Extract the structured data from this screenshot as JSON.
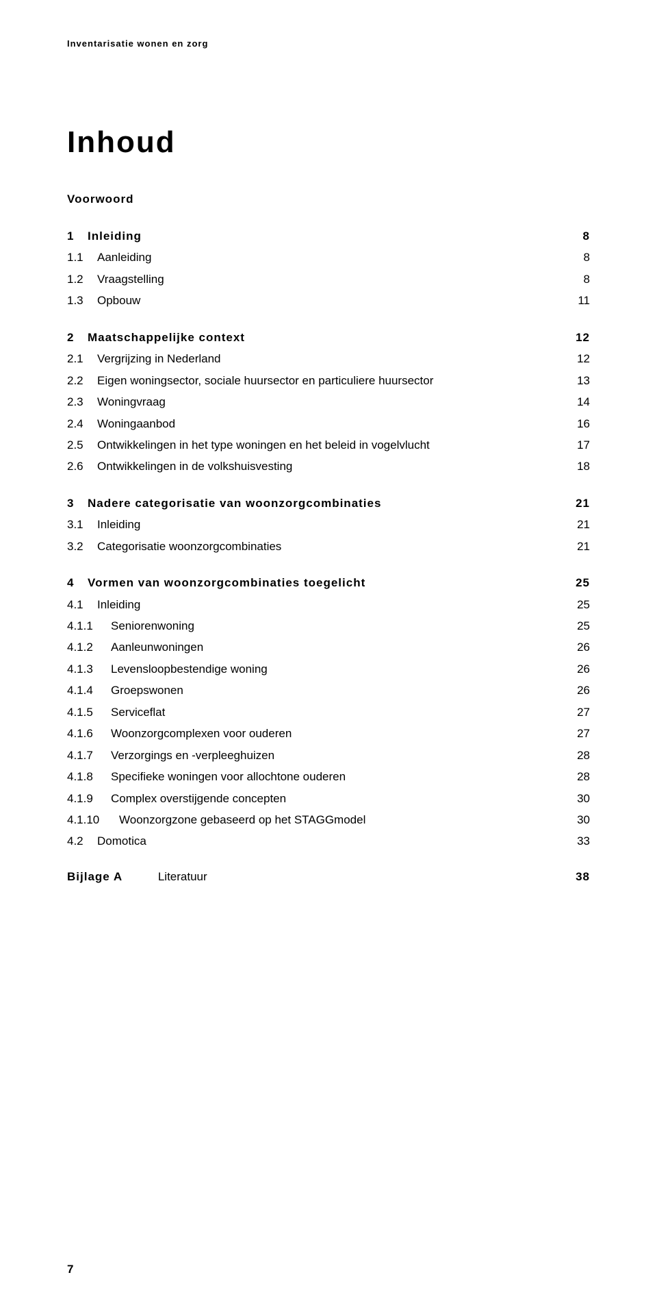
{
  "colors": {
    "text": "#000000",
    "background": "#ffffff"
  },
  "typography": {
    "family": "Verdana",
    "running_header_pt": 10,
    "title_pt": 33,
    "body_pt": 13,
    "line_height": 1.85
  },
  "running_header": "Inventarisatie wonen en zorg",
  "title": "Inhoud",
  "voorwoord": "Voorwoord",
  "toc": [
    {
      "num": "1",
      "label": "Inleiding",
      "page": "8",
      "bold": true,
      "level": 0
    },
    {
      "num": "1.1",
      "label": "Aanleiding",
      "page": "8",
      "bold": false,
      "level": 1
    },
    {
      "num": "1.2",
      "label": "Vraagstelling",
      "page": "8",
      "bold": false,
      "level": 1
    },
    {
      "num": "1.3",
      "label": "Opbouw",
      "page": "11",
      "bold": false,
      "level": 1
    },
    {
      "gap": true
    },
    {
      "num": "2",
      "label": "Maatschappelijke context",
      "page": "12",
      "bold": true,
      "level": 0
    },
    {
      "num": "2.1",
      "label": "Vergrijzing in Nederland",
      "page": "12",
      "bold": false,
      "level": 1
    },
    {
      "num": "2.2",
      "label": "Eigen woningsector, sociale huursector en particuliere huursector",
      "page": "13",
      "bold": false,
      "level": 1
    },
    {
      "num": "2.3",
      "label": "Woningvraag",
      "page": "14",
      "bold": false,
      "level": 1
    },
    {
      "num": "2.4",
      "label": "Woningaanbod",
      "page": "16",
      "bold": false,
      "level": 1
    },
    {
      "num": "2.5",
      "label": "Ontwikkelingen in het type woningen en het beleid in vogelvlucht",
      "page": "17",
      "bold": false,
      "level": 1
    },
    {
      "num": "2.6",
      "label": "Ontwikkelingen in de volkshuisvesting",
      "page": "18",
      "bold": false,
      "level": 1
    },
    {
      "gap": true
    },
    {
      "num": "3",
      "label": "Nadere categorisatie van woonzorgcombinaties",
      "page": "21",
      "bold": true,
      "level": 0
    },
    {
      "num": "3.1",
      "label": "Inleiding",
      "page": "21",
      "bold": false,
      "level": 1
    },
    {
      "num": "3.2",
      "label": "Categorisatie woonzorgcombinaties",
      "page": "21",
      "bold": false,
      "level": 1
    },
    {
      "gap": true
    },
    {
      "num": "4",
      "label": "Vormen van woonzorgcombinaties toegelicht",
      "page": "25",
      "bold": true,
      "level": 0
    },
    {
      "num": "4.1",
      "label": "Inleiding",
      "page": "25",
      "bold": false,
      "level": 1
    },
    {
      "num": "4.1.1",
      "label": "Seniorenwoning",
      "page": "25",
      "bold": false,
      "level": 2
    },
    {
      "num": "4.1.2",
      "label": "Aanleunwoningen",
      "page": "26",
      "bold": false,
      "level": 2
    },
    {
      "num": "4.1.3",
      "label": "Levensloopbestendige woning",
      "page": "26",
      "bold": false,
      "level": 2
    },
    {
      "num": "4.1.4",
      "label": "Groepswonen",
      "page": "26",
      "bold": false,
      "level": 2
    },
    {
      "num": "4.1.5",
      "label": "Serviceflat",
      "page": "27",
      "bold": false,
      "level": 2
    },
    {
      "num": "4.1.6",
      "label": "Woonzorgcomplexen voor ouderen",
      "page": "27",
      "bold": false,
      "level": 2
    },
    {
      "num": "4.1.7",
      "label": "Verzorgings en -verpleeghuizen",
      "page": "28",
      "bold": false,
      "level": 2
    },
    {
      "num": "4.1.8",
      "label": "Specifieke woningen voor allochtone ouderen",
      "page": "28",
      "bold": false,
      "level": 2
    },
    {
      "num": "4.1.9",
      "label": "Complex overstijgende concepten",
      "page": "30",
      "bold": false,
      "level": 2
    },
    {
      "num": "4.1.10",
      "label": "Woonzorgzone gebaseerd op het STAGGmodel",
      "page": "30",
      "bold": false,
      "level": 3
    },
    {
      "num": "4.2",
      "label": "Domotica",
      "page": "33",
      "bold": false,
      "level": 1
    }
  ],
  "bijlage": {
    "label": "Bijlage A",
    "title": "Literatuur",
    "page": "38"
  },
  "page_number": "7"
}
